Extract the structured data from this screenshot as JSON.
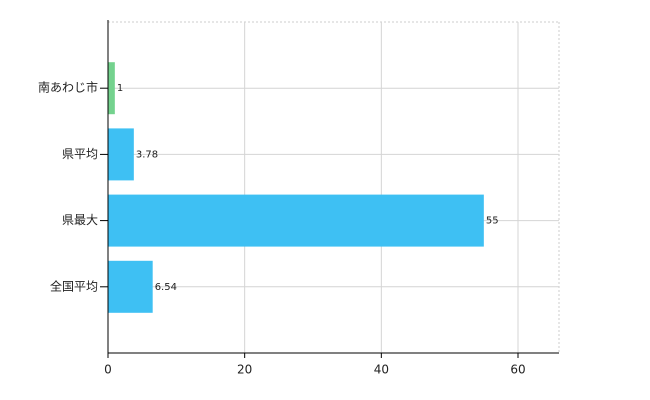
{
  "chart_data": {
    "type": "hbar",
    "categories": [
      "南あわじ市",
      "県平均",
      "県最大",
      "全国平均"
    ],
    "values": [
      1,
      3.78,
      55,
      6.54
    ],
    "colors": [
      "#74d28e",
      "#3ec0f3",
      "#3ec0f3",
      "#3ec0f3"
    ],
    "xlim": [
      0,
      66
    ],
    "xticks": [
      0,
      20,
      40,
      60
    ],
    "grid": true
  }
}
